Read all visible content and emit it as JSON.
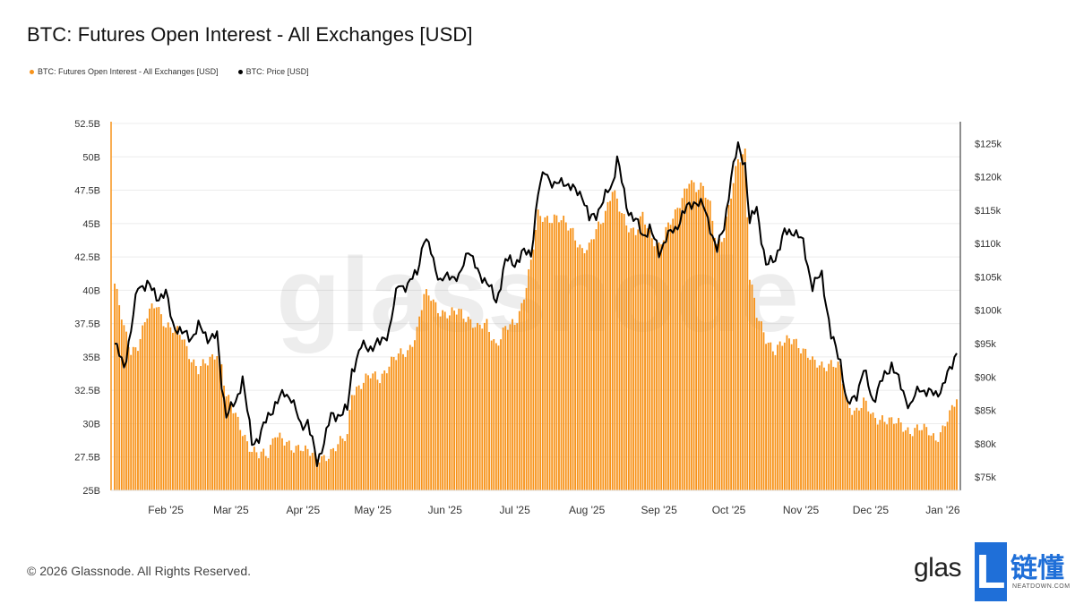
{
  "title": "BTC: Futures Open Interest - All Exchanges [USD]",
  "legend": {
    "oi": {
      "label": "BTC: Futures Open Interest - All Exchanges [USD]",
      "color": "#F7931A"
    },
    "price": {
      "label": "BTC: Price [USD]",
      "color": "#000000"
    }
  },
  "watermark": "glassnode",
  "footer": "© 2026 Glassnode. All Rights Reserved.",
  "brand": {
    "text": "glas",
    "badge_letter": "L",
    "badge_cn": "链懂",
    "badge_sub": "NEATDOWN.COM",
    "badge_color": "#1F6FD8"
  },
  "chart_data": {
    "type": "bar",
    "title": "BTC: Futures Open Interest - All Exchanges [USD]",
    "x_range": [
      "2025-01-10",
      "2026-01-07"
    ],
    "x_ticks": [
      {
        "date": "2025-02-01",
        "label": "Feb '25"
      },
      {
        "date": "2025-03-01",
        "label": "Mar '25"
      },
      {
        "date": "2025-04-01",
        "label": "Apr '25"
      },
      {
        "date": "2025-05-01",
        "label": "May '25"
      },
      {
        "date": "2025-06-01",
        "label": "Jun '25"
      },
      {
        "date": "2025-07-01",
        "label": "Jul '25"
      },
      {
        "date": "2025-08-01",
        "label": "Aug '25"
      },
      {
        "date": "2025-09-01",
        "label": "Sep '25"
      },
      {
        "date": "2025-10-01",
        "label": "Oct '25"
      },
      {
        "date": "2025-11-01",
        "label": "Nov '25"
      },
      {
        "date": "2025-12-01",
        "label": "Dec '25"
      },
      {
        "date": "2026-01-01",
        "label": "Jan '26"
      }
    ],
    "left_axis": {
      "unit": "USD (billions)",
      "ylim": [
        25,
        52.5
      ],
      "ticks": [
        25,
        27.5,
        30,
        32.5,
        35,
        37.5,
        40,
        42.5,
        45,
        47.5,
        50,
        52.5
      ],
      "tick_labels": [
        "25B",
        "27.5B",
        "30B",
        "32.5B",
        "35B",
        "37.5B",
        "40B",
        "42.5B",
        "45B",
        "47.5B",
        "50B",
        "52.5B"
      ]
    },
    "right_axis": {
      "unit": "USD (thousands)",
      "ylim": [
        73,
        128
      ],
      "ticks": [
        75,
        80,
        85,
        90,
        95,
        100,
        105,
        110,
        115,
        120,
        125
      ],
      "tick_labels": [
        "$75k",
        "$80k",
        "$85k",
        "$90k",
        "$95k",
        "$100k",
        "$105k",
        "$110k",
        "$115k",
        "$120k",
        "$125k"
      ]
    },
    "grid": true,
    "legend_position": "top-left",
    "series": [
      {
        "name": "BTC: Futures Open Interest - All Exchanges [USD]",
        "chart_type": "bar",
        "axis": "left",
        "color": "#F7931A",
        "points": [
          [
            "2025-01-10",
            40.5
          ],
          [
            "2025-01-14",
            37.0
          ],
          [
            "2025-01-17",
            35.5
          ],
          [
            "2025-01-20",
            36.0
          ],
          [
            "2025-01-24",
            38.0
          ],
          [
            "2025-01-28",
            39.0
          ],
          [
            "2025-02-01",
            37.5
          ],
          [
            "2025-02-04",
            37.0
          ],
          [
            "2025-02-08",
            36.5
          ],
          [
            "2025-02-12",
            35.0
          ],
          [
            "2025-02-15",
            34.0
          ],
          [
            "2025-02-19",
            34.5
          ],
          [
            "2025-02-23",
            35.5
          ],
          [
            "2025-02-25",
            34.5
          ],
          [
            "2025-02-27",
            32.0
          ],
          [
            "2025-03-03",
            30.5
          ],
          [
            "2025-03-06",
            29.5
          ],
          [
            "2025-03-10",
            28.0
          ],
          [
            "2025-03-13",
            27.5
          ],
          [
            "2025-03-17",
            27.8
          ],
          [
            "2025-03-20",
            29.5
          ],
          [
            "2025-03-24",
            28.5
          ],
          [
            "2025-03-27",
            28.0
          ],
          [
            "2025-03-31",
            28.5
          ],
          [
            "2025-04-03",
            28.0
          ],
          [
            "2025-04-07",
            27.2
          ],
          [
            "2025-04-10",
            27.5
          ],
          [
            "2025-04-13",
            28.0
          ],
          [
            "2025-04-17",
            28.5
          ],
          [
            "2025-04-20",
            29.0
          ],
          [
            "2025-04-22",
            32.5
          ],
          [
            "2025-04-26",
            33.0
          ],
          [
            "2025-04-30",
            33.5
          ],
          [
            "2025-05-04",
            33.5
          ],
          [
            "2025-05-08",
            34.5
          ],
          [
            "2025-05-12",
            35.0
          ],
          [
            "2025-05-16",
            35.5
          ],
          [
            "2025-05-20",
            37.0
          ],
          [
            "2025-05-23",
            39.5
          ],
          [
            "2025-05-26",
            39.5
          ],
          [
            "2025-05-30",
            38.5
          ],
          [
            "2025-06-03",
            38.0
          ],
          [
            "2025-06-07",
            38.5
          ],
          [
            "2025-06-11",
            38.0
          ],
          [
            "2025-06-15",
            37.0
          ],
          [
            "2025-06-19",
            37.5
          ],
          [
            "2025-06-23",
            36.0
          ],
          [
            "2025-06-27",
            37.0
          ],
          [
            "2025-07-01",
            37.5
          ],
          [
            "2025-07-04",
            39.0
          ],
          [
            "2025-07-08",
            42.0
          ],
          [
            "2025-07-11",
            45.5
          ],
          [
            "2025-07-14",
            45.5
          ],
          [
            "2025-07-18",
            45.5
          ],
          [
            "2025-07-22",
            45.0
          ],
          [
            "2025-07-26",
            44.5
          ],
          [
            "2025-07-30",
            43.0
          ],
          [
            "2025-08-02",
            43.0
          ],
          [
            "2025-08-05",
            44.5
          ],
          [
            "2025-08-09",
            46.0
          ],
          [
            "2025-08-12",
            47.5
          ],
          [
            "2025-08-15",
            46.0
          ],
          [
            "2025-08-18",
            45.0
          ],
          [
            "2025-08-22",
            44.5
          ],
          [
            "2025-08-25",
            45.5
          ],
          [
            "2025-08-28",
            44.0
          ],
          [
            "2025-09-01",
            43.5
          ],
          [
            "2025-09-04",
            44.5
          ],
          [
            "2025-09-08",
            45.5
          ],
          [
            "2025-09-11",
            47.0
          ],
          [
            "2025-09-14",
            48.5
          ],
          [
            "2025-09-17",
            47.5
          ],
          [
            "2025-09-20",
            47.5
          ],
          [
            "2025-09-23",
            46.5
          ],
          [
            "2025-09-26",
            43.5
          ],
          [
            "2025-09-29",
            44.0
          ],
          [
            "2025-10-02",
            47.0
          ],
          [
            "2025-10-05",
            50.0
          ],
          [
            "2025-10-08",
            50.5
          ],
          [
            "2025-10-10",
            41.0
          ],
          [
            "2025-10-13",
            38.0
          ],
          [
            "2025-10-17",
            36.5
          ],
          [
            "2025-10-21",
            35.5
          ],
          [
            "2025-10-25",
            36.0
          ],
          [
            "2025-10-29",
            36.5
          ],
          [
            "2025-11-02",
            35.5
          ],
          [
            "2025-11-06",
            34.5
          ],
          [
            "2025-11-10",
            34.5
          ],
          [
            "2025-11-14",
            34.5
          ],
          [
            "2025-11-18",
            34.0
          ],
          [
            "2025-11-21",
            31.5
          ],
          [
            "2025-11-25",
            31.0
          ],
          [
            "2025-11-28",
            31.5
          ],
          [
            "2025-12-02",
            30.5
          ],
          [
            "2025-12-06",
            30.5
          ],
          [
            "2025-12-10",
            30.0
          ],
          [
            "2025-12-14",
            30.0
          ],
          [
            "2025-12-18",
            29.5
          ],
          [
            "2025-12-22",
            29.5
          ],
          [
            "2025-12-26",
            29.5
          ],
          [
            "2025-12-29",
            29.0
          ],
          [
            "2026-01-01",
            29.5
          ],
          [
            "2026-01-04",
            30.5
          ],
          [
            "2026-01-07",
            32.0
          ]
        ]
      },
      {
        "name": "BTC: Price [USD]",
        "chart_type": "line",
        "axis": "right",
        "color": "#000000",
        "points": [
          [
            "2025-01-10",
            95.0
          ],
          [
            "2025-01-14",
            91.5
          ],
          [
            "2025-01-17",
            97.0
          ],
          [
            "2025-01-20",
            103.5
          ],
          [
            "2025-01-24",
            104.0
          ],
          [
            "2025-01-28",
            102.0
          ],
          [
            "2025-02-01",
            102.5
          ],
          [
            "2025-02-04",
            98.0
          ],
          [
            "2025-02-08",
            96.5
          ],
          [
            "2025-02-12",
            96.0
          ],
          [
            "2025-02-15",
            97.5
          ],
          [
            "2025-02-19",
            96.0
          ],
          [
            "2025-02-23",
            96.0
          ],
          [
            "2025-02-25",
            89.0
          ],
          [
            "2025-02-27",
            84.5
          ],
          [
            "2025-03-03",
            86.0
          ],
          [
            "2025-03-06",
            90.0
          ],
          [
            "2025-03-10",
            80.0
          ],
          [
            "2025-03-13",
            81.0
          ],
          [
            "2025-03-17",
            84.0
          ],
          [
            "2025-03-20",
            86.0
          ],
          [
            "2025-03-24",
            87.5
          ],
          [
            "2025-03-27",
            87.0
          ],
          [
            "2025-03-31",
            82.5
          ],
          [
            "2025-04-03",
            83.5
          ],
          [
            "2025-04-07",
            77.0
          ],
          [
            "2025-04-10",
            80.5
          ],
          [
            "2025-04-13",
            84.0
          ],
          [
            "2025-04-17",
            84.5
          ],
          [
            "2025-04-20",
            85.0
          ],
          [
            "2025-04-22",
            91.0
          ],
          [
            "2025-04-26",
            94.5
          ],
          [
            "2025-04-30",
            94.5
          ],
          [
            "2025-05-04",
            95.0
          ],
          [
            "2025-05-08",
            97.0
          ],
          [
            "2025-05-12",
            104.0
          ],
          [
            "2025-05-16",
            103.5
          ],
          [
            "2025-05-20",
            106.0
          ],
          [
            "2025-05-23",
            110.5
          ],
          [
            "2025-05-26",
            109.0
          ],
          [
            "2025-05-30",
            104.0
          ],
          [
            "2025-06-03",
            105.5
          ],
          [
            "2025-06-07",
            104.5
          ],
          [
            "2025-06-11",
            109.5
          ],
          [
            "2025-06-15",
            105.5
          ],
          [
            "2025-06-19",
            104.5
          ],
          [
            "2025-06-23",
            101.0
          ],
          [
            "2025-06-27",
            107.5
          ],
          [
            "2025-07-01",
            107.0
          ],
          [
            "2025-07-04",
            108.5
          ],
          [
            "2025-07-08",
            108.5
          ],
          [
            "2025-07-11",
            117.5
          ],
          [
            "2025-07-14",
            121.0
          ],
          [
            "2025-07-18",
            118.5
          ],
          [
            "2025-07-22",
            119.5
          ],
          [
            "2025-07-26",
            118.0
          ],
          [
            "2025-07-30",
            117.5
          ],
          [
            "2025-08-02",
            113.5
          ],
          [
            "2025-08-05",
            114.5
          ],
          [
            "2025-08-09",
            117.0
          ],
          [
            "2025-08-12",
            119.0
          ],
          [
            "2025-08-14",
            123.0
          ],
          [
            "2025-08-18",
            115.5
          ],
          [
            "2025-08-22",
            113.5
          ],
          [
            "2025-08-25",
            111.0
          ],
          [
            "2025-08-28",
            112.5
          ],
          [
            "2025-09-01",
            108.5
          ],
          [
            "2025-09-04",
            111.0
          ],
          [
            "2025-09-08",
            112.0
          ],
          [
            "2025-09-11",
            114.5
          ],
          [
            "2025-09-14",
            115.5
          ],
          [
            "2025-09-17",
            116.5
          ],
          [
            "2025-09-20",
            115.5
          ],
          [
            "2025-09-23",
            112.5
          ],
          [
            "2025-09-26",
            109.0
          ],
          [
            "2025-09-29",
            112.5
          ],
          [
            "2025-10-02",
            120.0
          ],
          [
            "2025-10-05",
            124.5
          ],
          [
            "2025-10-08",
            122.0
          ],
          [
            "2025-10-10",
            113.0
          ],
          [
            "2025-10-13",
            115.5
          ],
          [
            "2025-10-17",
            106.5
          ],
          [
            "2025-10-21",
            108.0
          ],
          [
            "2025-10-25",
            111.5
          ],
          [
            "2025-10-29",
            112.0
          ],
          [
            "2025-11-02",
            110.0
          ],
          [
            "2025-11-06",
            103.5
          ],
          [
            "2025-11-10",
            105.5
          ],
          [
            "2025-11-14",
            96.0
          ],
          [
            "2025-11-18",
            92.5
          ],
          [
            "2025-11-21",
            85.5
          ],
          [
            "2025-11-25",
            87.5
          ],
          [
            "2025-11-28",
            91.0
          ],
          [
            "2025-12-02",
            86.5
          ],
          [
            "2025-12-06",
            89.5
          ],
          [
            "2025-12-10",
            92.0
          ],
          [
            "2025-12-14",
            88.5
          ],
          [
            "2025-12-18",
            85.5
          ],
          [
            "2025-12-22",
            88.5
          ],
          [
            "2025-12-26",
            87.5
          ],
          [
            "2025-12-29",
            87.5
          ],
          [
            "2026-01-01",
            88.5
          ],
          [
            "2026-01-04",
            91.0
          ],
          [
            "2026-01-07",
            94.0
          ]
        ]
      }
    ]
  }
}
